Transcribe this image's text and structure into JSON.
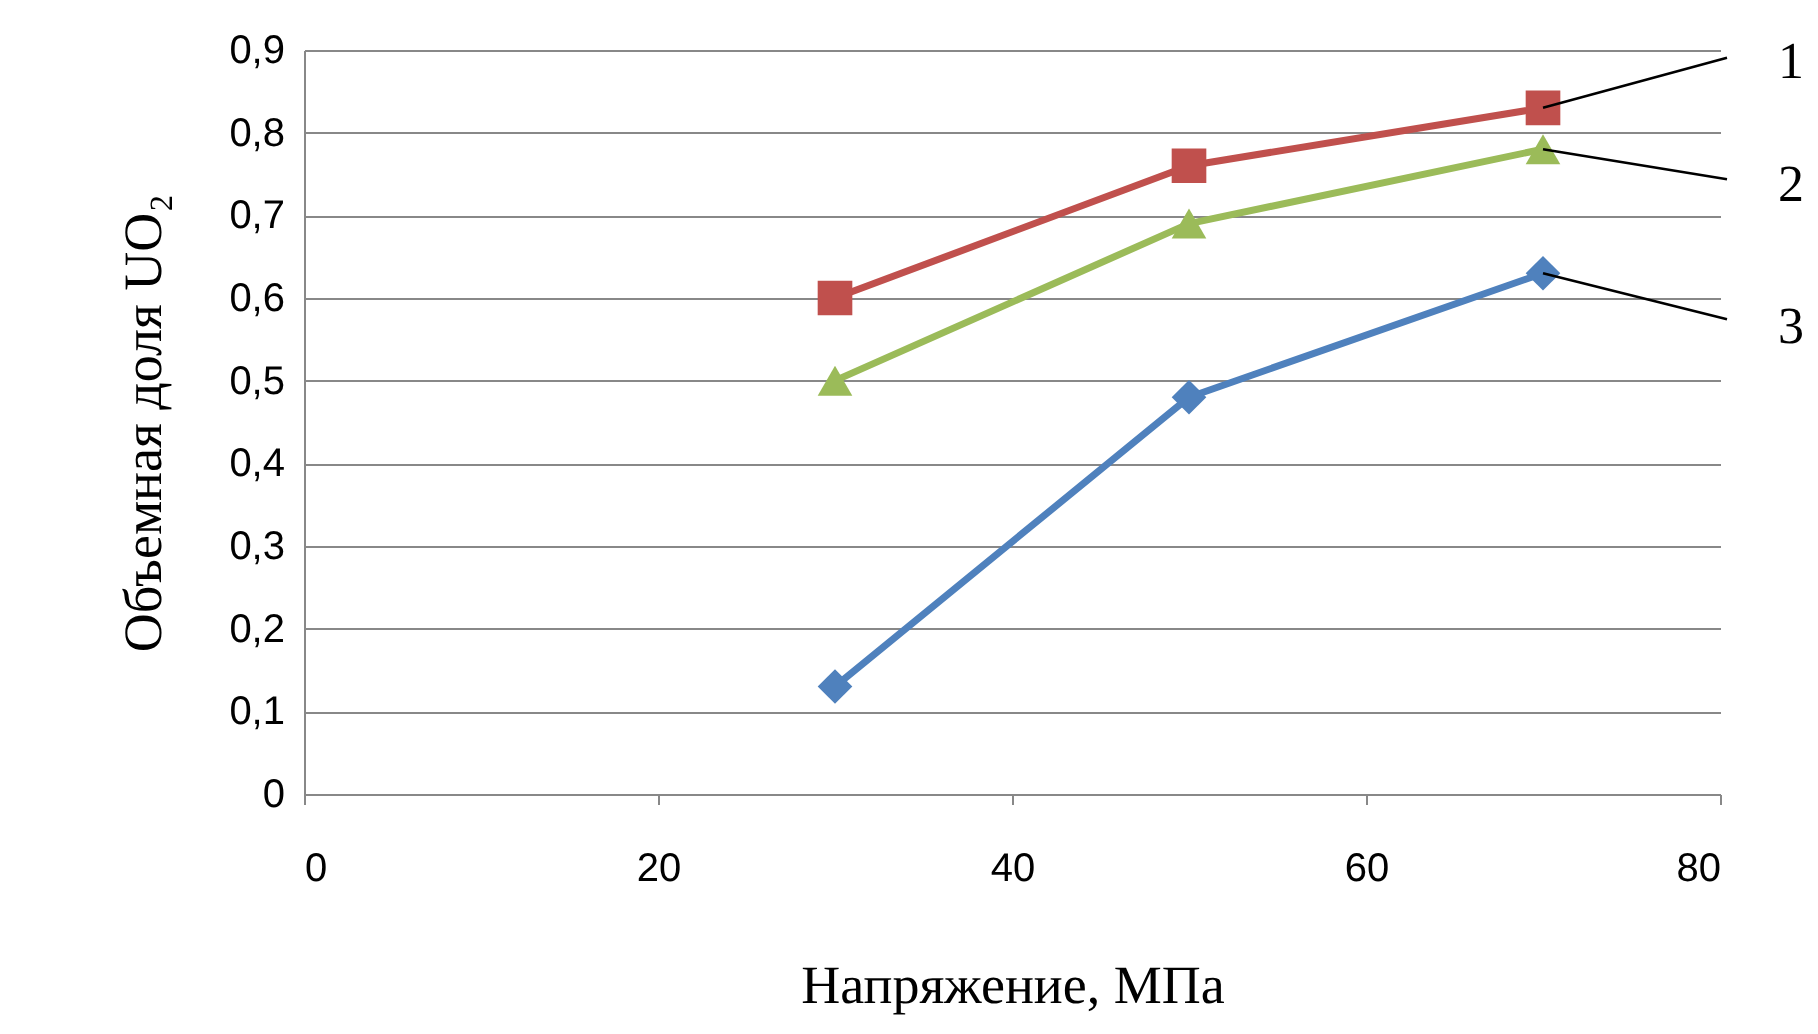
{
  "chart_data": {
    "type": "line",
    "xlabel": "Напряжение, МПа",
    "ylabel": "Объемная доля UO₂",
    "x": [
      30,
      50,
      70
    ],
    "series": [
      {
        "name": "1",
        "color": "#c0504d",
        "marker": "square",
        "values": [
          0.6,
          0.76,
          0.83
        ]
      },
      {
        "name": "2",
        "color": "#9bbb59",
        "marker": "triangle",
        "values": [
          0.5,
          0.69,
          0.78
        ]
      },
      {
        "name": "3",
        "color": "#4f81bd",
        "marker": "diamond",
        "values": [
          0.13,
          0.48,
          0.63
        ]
      }
    ],
    "xlim": [
      0,
      80
    ],
    "xticks": [
      0,
      20,
      40,
      60,
      80
    ],
    "ylim": [
      0,
      0.9
    ],
    "yticks": [
      0,
      {
        "value": 0.1,
        "label": "0,1"
      },
      {
        "value": 0.2,
        "label": "0,2"
      },
      {
        "value": 0.3,
        "label": "0,3"
      },
      {
        "value": 0.4,
        "label": "0,4"
      },
      {
        "value": 0.5,
        "label": "0,5"
      },
      {
        "value": 0.6,
        "label": "0,6"
      },
      {
        "value": 0.7,
        "label": "0,7"
      },
      {
        "value": 0.8,
        "label": "0,8"
      },
      {
        "value": 0.9,
        "label": "0,9"
      }
    ],
    "grid": "y",
    "legend": false,
    "line_style": "solid"
  }
}
